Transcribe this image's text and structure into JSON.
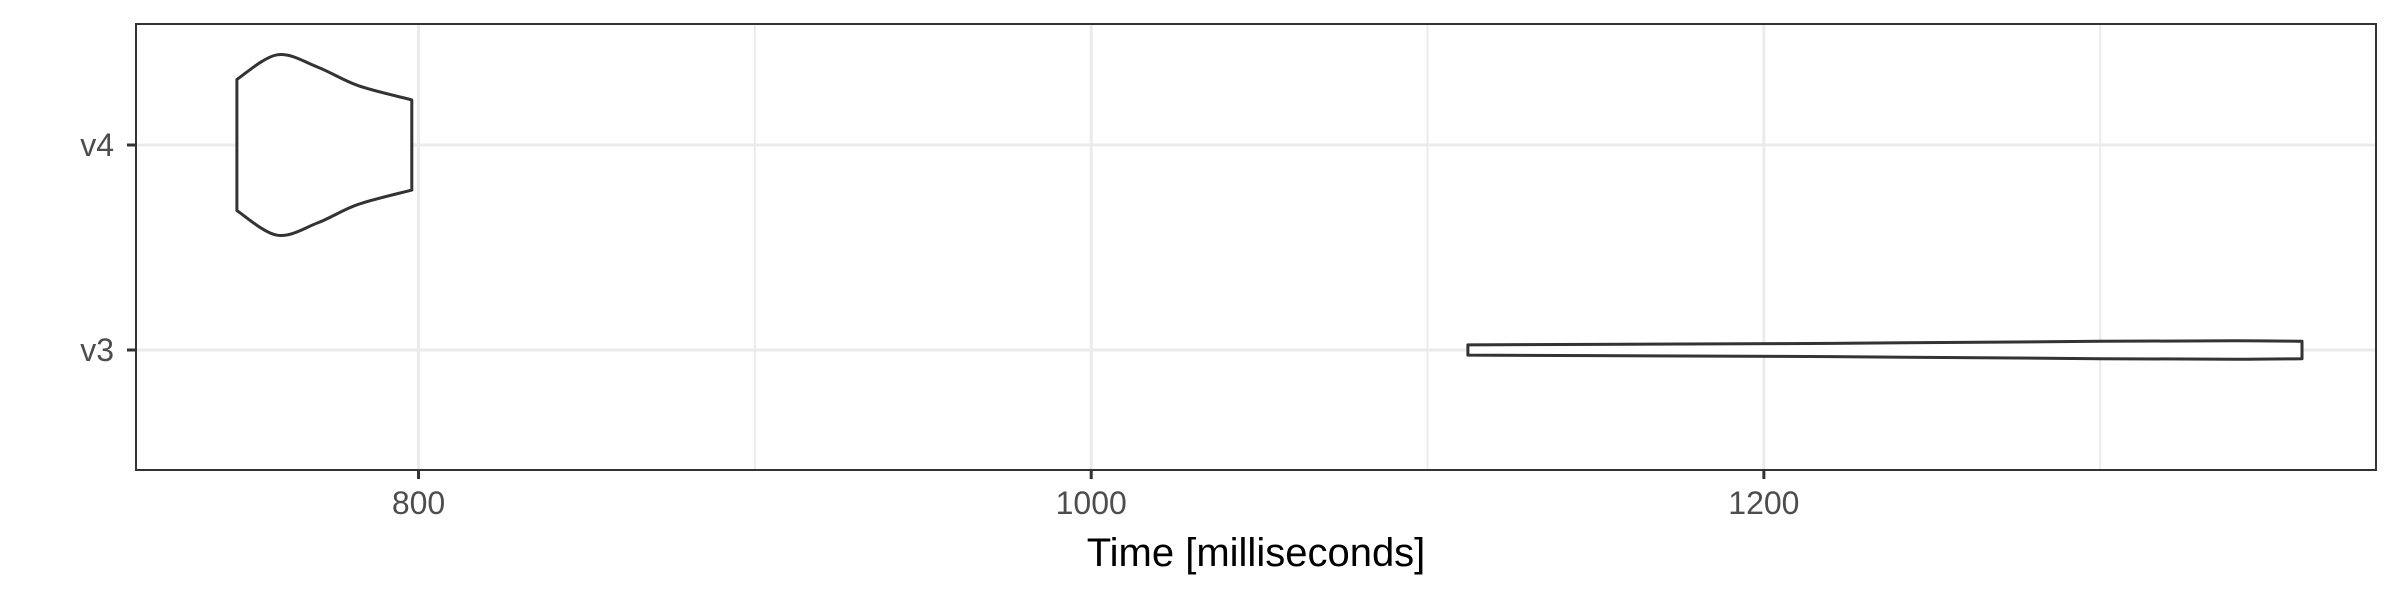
{
  "chart_data": {
    "type": "violin",
    "title": "",
    "xlabel": "Time [milliseconds]",
    "ylabel": "",
    "xlim": [
      716,
      1382
    ],
    "x_ticks": [
      800,
      1000,
      1200
    ],
    "x_minor_ticks": [
      900,
      1100,
      1300
    ],
    "categories": [
      "v3",
      "v4"
    ],
    "grid": true,
    "series": [
      {
        "category": "v4",
        "range": [
          746,
          798
        ],
        "density": [
          [
            746,
            0.64
          ],
          [
            758,
            0.88
          ],
          [
            770,
            0.76
          ],
          [
            782,
            0.58
          ],
          [
            798,
            0.44
          ]
        ]
      },
      {
        "category": "v3",
        "range": [
          1112,
          1360
        ],
        "density": [
          [
            1112,
            0.05
          ],
          [
            1150,
            0.055
          ],
          [
            1220,
            0.065
          ],
          [
            1300,
            0.085
          ],
          [
            1340,
            0.09
          ],
          [
            1360,
            0.085
          ]
        ]
      }
    ],
    "colors": {
      "outline": "#333333",
      "fill": "#ffffff",
      "grid": "#ebebeb",
      "panel_border": "#333333"
    }
  }
}
